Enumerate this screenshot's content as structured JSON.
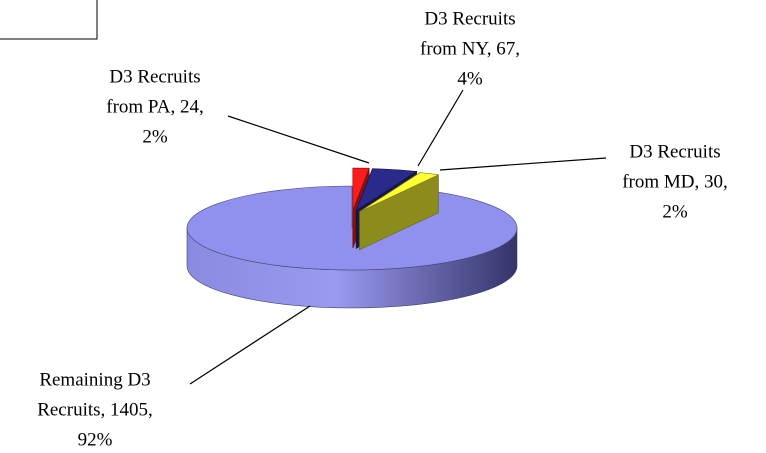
{
  "chart_data": {
    "type": "pie3d",
    "values": [
      24,
      67,
      30,
      1405
    ],
    "value_labels": [
      [
        "D3 Recruits",
        "from PA, 24,",
        "2%"
      ],
      [
        "D3 Recruits",
        "from NY, 67,",
        "4%"
      ],
      [
        "D3 Recruits",
        "from MD, 30,",
        "2%"
      ],
      [
        "Remaining D3",
        "Recruits, 1405,",
        "92%"
      ]
    ],
    "colors": [
      "#ff1c1c",
      "#2a2a8a",
      "#ffff33",
      "#9090ee"
    ]
  }
}
